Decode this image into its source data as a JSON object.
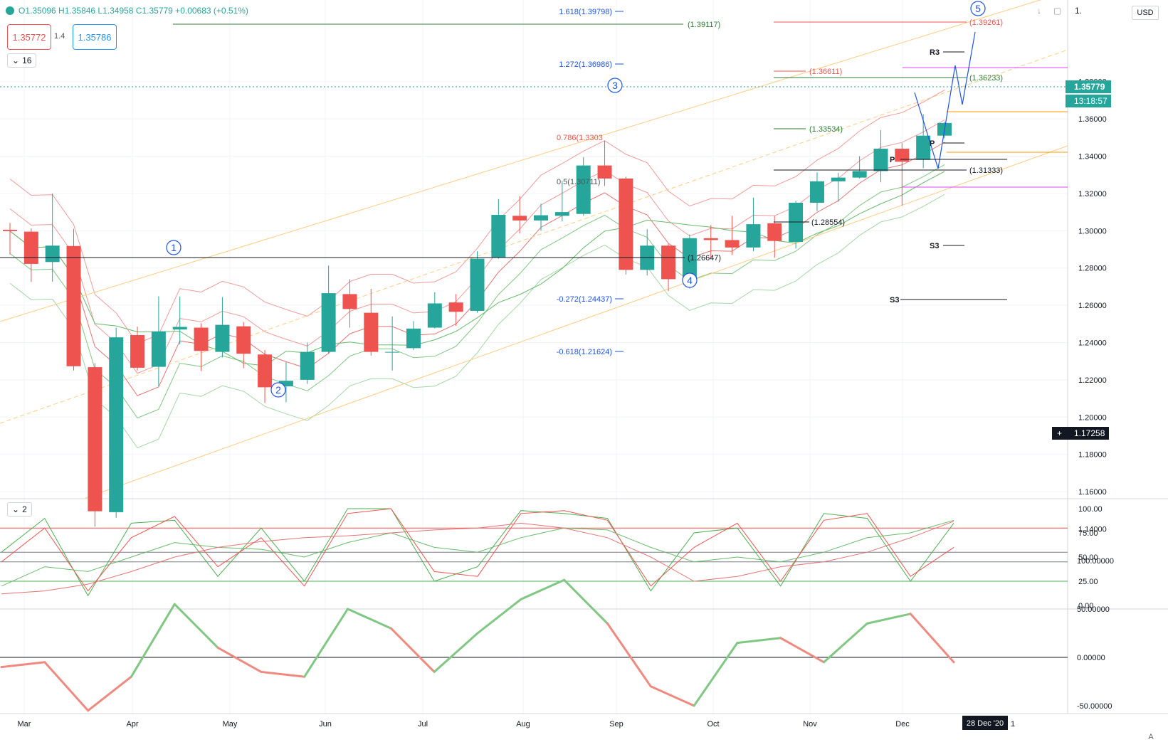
{
  "header": {
    "ohlc": "O1.35096 H1.35846 L1.34958 C1.35779 +0.00683 (+0.51%)",
    "sell_price": "1.35772",
    "spread": "1.4",
    "buy_price": "1.35786",
    "indicator_count": "16",
    "stoch_count": "2",
    "currency": "USD",
    "top_price_cut": "1.",
    "auto_label": "A"
  },
  "colors": {
    "up": "#26a69a",
    "down": "#ef5350",
    "last_price_bg": "#26a69a",
    "crosshair_bg": "#131722"
  },
  "price_axis": {
    "ticks": [
      "1.14000",
      "1.16000",
      "1.18000",
      "1.20000",
      "1.22000",
      "1.24000",
      "1.26000",
      "1.28000",
      "1.30000",
      "1.32000",
      "1.34000",
      "1.36000",
      "1.38000"
    ],
    "last_price": "1.35779",
    "countdown": "13:18:57",
    "crosshair_price": "1.17258"
  },
  "time_axis": {
    "ticks": [
      "Mar",
      "Apr",
      "May",
      "Jun",
      "Jul",
      "Aug",
      "Sep",
      "Oct",
      "Nov",
      "Dec"
    ],
    "crosshair_date": "28 Dec '20",
    "edge_tick": "1"
  },
  "annotations": {
    "fib_ext": [
      {
        "label": "1.618(1.39798)"
      },
      {
        "label": "1.272(1.36986)"
      },
      {
        "label": "-0.272(1.24437)"
      },
      {
        "label": "-0.618(1.21624)"
      }
    ],
    "fib_retr": [
      {
        "label": "0.786(1.3303"
      },
      {
        "label": "0.5(1.30711)"
      }
    ],
    "levels": [
      {
        "label": "(1.39117)"
      },
      {
        "label": "(1.39261)"
      },
      {
        "label": "(1.36611)"
      },
      {
        "label": "(1.36233)"
      },
      {
        "label": "(1.33534)"
      },
      {
        "label": "(1.31333)"
      },
      {
        "label": "(1.28554)"
      },
      {
        "label": "(1.26647)"
      }
    ],
    "waves": [
      "1",
      "2",
      "3",
      "4",
      "5"
    ],
    "pivots": [
      "R3",
      "P",
      "S3",
      "S3",
      "P"
    ]
  },
  "chart_data": [
    {
      "type": "candlestick",
      "title": "",
      "x_range": [
        "2020-02-17",
        "2021-01-01"
      ],
      "ylim": [
        1.14,
        1.405
      ],
      "points": [
        {
          "date": "2020-02-17",
          "o": 1.3005,
          "h": 1.3042,
          "l": 1.2873,
          "c": 1.2998
        },
        {
          "date": "2020-02-24",
          "o": 1.2995,
          "h": 1.3012,
          "l": 1.2725,
          "c": 1.2822
        },
        {
          "date": "2020-03-02",
          "o": 1.2832,
          "h": 1.32,
          "l": 1.2726,
          "c": 1.292
        },
        {
          "date": "2020-03-09",
          "o": 1.2918,
          "h": 1.301,
          "l": 1.225,
          "c": 1.2273
        },
        {
          "date": "2020-03-16",
          "o": 1.2268,
          "h": 1.229,
          "l": 1.1412,
          "c": 1.1495
        },
        {
          "date": "2020-03-23",
          "o": 1.149,
          "h": 1.248,
          "l": 1.146,
          "c": 1.2428
        },
        {
          "date": "2020-03-30",
          "o": 1.244,
          "h": 1.2485,
          "l": 1.225,
          "c": 1.2265
        },
        {
          "date": "2020-04-06",
          "o": 1.227,
          "h": 1.2648,
          "l": 1.2165,
          "c": 1.246
        },
        {
          "date": "2020-04-13",
          "o": 1.247,
          "h": 1.2647,
          "l": 1.239,
          "c": 1.2484
        },
        {
          "date": "2020-04-20",
          "o": 1.248,
          "h": 1.2503,
          "l": 1.2247,
          "c": 1.2355
        },
        {
          "date": "2020-04-27",
          "o": 1.235,
          "h": 1.2644,
          "l": 1.232,
          "c": 1.2495
        },
        {
          "date": "2020-05-04",
          "o": 1.2487,
          "h": 1.251,
          "l": 1.2262,
          "c": 1.234
        },
        {
          "date": "2020-05-11",
          "o": 1.2336,
          "h": 1.236,
          "l": 1.2076,
          "c": 1.216
        },
        {
          "date": "2020-05-18",
          "o": 1.2165,
          "h": 1.2295,
          "l": 1.208,
          "c": 1.2195
        },
        {
          "date": "2020-05-25",
          "o": 1.22,
          "h": 1.24,
          "l": 1.2178,
          "c": 1.235
        },
        {
          "date": "2020-06-01",
          "o": 1.235,
          "h": 1.2813,
          "l": 1.234,
          "c": 1.2665
        },
        {
          "date": "2020-06-08",
          "o": 1.266,
          "h": 1.274,
          "l": 1.248,
          "c": 1.258
        },
        {
          "date": "2020-06-15",
          "o": 1.256,
          "h": 1.2688,
          "l": 1.233,
          "c": 1.235
        },
        {
          "date": "2020-06-22",
          "o": 1.235,
          "h": 1.254,
          "l": 1.225,
          "c": 1.235
        },
        {
          "date": "2020-06-29",
          "o": 1.237,
          "h": 1.2515,
          "l": 1.236,
          "c": 1.2475
        },
        {
          "date": "2020-07-06",
          "o": 1.248,
          "h": 1.267,
          "l": 1.2475,
          "c": 1.261
        },
        {
          "date": "2020-07-13",
          "o": 1.2615,
          "h": 1.266,
          "l": 1.249,
          "c": 1.2565
        },
        {
          "date": "2020-07-20",
          "o": 1.257,
          "h": 1.289,
          "l": 1.256,
          "c": 1.285
        },
        {
          "date": "2020-07-27",
          "o": 1.2855,
          "h": 1.317,
          "l": 1.285,
          "c": 1.3085
        },
        {
          "date": "2020-08-03",
          "o": 1.308,
          "h": 1.3185,
          "l": 1.2985,
          "c": 1.3055
        },
        {
          "date": "2020-08-10",
          "o": 1.3055,
          "h": 1.3145,
          "l": 1.3,
          "c": 1.3083
        },
        {
          "date": "2020-08-17",
          "o": 1.308,
          "h": 1.3267,
          "l": 1.305,
          "c": 1.31
        },
        {
          "date": "2020-08-24",
          "o": 1.309,
          "h": 1.3395,
          "l": 1.308,
          "c": 1.335
        },
        {
          "date": "2020-08-31",
          "o": 1.335,
          "h": 1.3483,
          "l": 1.324,
          "c": 1.328
        },
        {
          "date": "2020-09-07",
          "o": 1.328,
          "h": 1.329,
          "l": 1.2765,
          "c": 1.279
        },
        {
          "date": "2020-09-14",
          "o": 1.279,
          "h": 1.3008,
          "l": 1.276,
          "c": 1.292
        },
        {
          "date": "2020-09-21",
          "o": 1.292,
          "h": 1.293,
          "l": 1.2676,
          "c": 1.274
        },
        {
          "date": "2020-09-28",
          "o": 1.2745,
          "h": 1.298,
          "l": 1.269,
          "c": 1.296
        },
        {
          "date": "2020-10-05",
          "o": 1.296,
          "h": 1.303,
          "l": 1.285,
          "c": 1.295
        },
        {
          "date": "2020-10-12",
          "o": 1.295,
          "h": 1.308,
          "l": 1.287,
          "c": 1.291
        },
        {
          "date": "2020-10-19",
          "o": 1.291,
          "h": 1.3177,
          "l": 1.289,
          "c": 1.3035
        },
        {
          "date": "2020-10-26",
          "o": 1.304,
          "h": 1.308,
          "l": 1.2855,
          "c": 1.2945
        },
        {
          "date": "2020-11-02",
          "o": 1.294,
          "h": 1.316,
          "l": 1.2905,
          "c": 1.315
        },
        {
          "date": "2020-11-09",
          "o": 1.315,
          "h": 1.3313,
          "l": 1.3105,
          "c": 1.3265
        },
        {
          "date": "2020-11-16",
          "o": 1.3265,
          "h": 1.331,
          "l": 1.3155,
          "c": 1.3285
        },
        {
          "date": "2020-11-23",
          "o": 1.3285,
          "h": 1.34,
          "l": 1.328,
          "c": 1.332
        },
        {
          "date": "2020-11-30",
          "o": 1.332,
          "h": 1.354,
          "l": 1.326,
          "c": 1.344
        },
        {
          "date": "2020-12-07",
          "o": 1.344,
          "h": 1.347,
          "l": 1.3135,
          "c": 1.337
        },
        {
          "date": "2020-12-14",
          "o": 1.338,
          "h": 1.3625,
          "l": 1.3335,
          "c": 1.351
        },
        {
          "date": "2020-12-21",
          "o": 1.351,
          "h": 1.3585,
          "l": 1.3496,
          "c": 1.3578
        }
      ]
    },
    {
      "type": "line",
      "title": "",
      "ylim": [
        0,
        100
      ],
      "y_ticks": [
        "0.00",
        "25.00",
        "50.00",
        "75.00",
        "100.00"
      ],
      "x": [
        "2020-02-17",
        "2020-03-02",
        "2020-03-16",
        "2020-03-30",
        "2020-04-13",
        "2020-04-27",
        "2020-05-11",
        "2020-05-25",
        "2020-06-08",
        "2020-06-22",
        "2020-07-06",
        "2020-07-20",
        "2020-08-03",
        "2020-08-17",
        "2020-08-31",
        "2020-09-14",
        "2020-09-28",
        "2020-10-12",
        "2020-10-26",
        "2020-11-09",
        "2020-11-23",
        "2020-12-07",
        "2020-12-21"
      ],
      "series": [
        {
          "values": [
            55,
            90,
            10,
            85,
            88,
            30,
            80,
            25,
            100,
            100,
            25,
            40,
            98,
            95,
            90,
            15,
            75,
            80,
            20,
            95,
            90,
            25,
            85
          ]
        },
        {
          "values": [
            45,
            80,
            15,
            70,
            92,
            40,
            70,
            20,
            95,
            100,
            35,
            30,
            95,
            98,
            88,
            20,
            60,
            85,
            25,
            88,
            95,
            30,
            60
          ]
        },
        {
          "values": [
            20,
            40,
            35,
            50,
            65,
            60,
            58,
            50,
            65,
            75,
            60,
            55,
            70,
            80,
            78,
            60,
            45,
            50,
            45,
            55,
            70,
            75,
            88
          ]
        },
        {
          "values": [
            12,
            15,
            22,
            35,
            50,
            60,
            66,
            70,
            72,
            75,
            78,
            80,
            85,
            80,
            70,
            50,
            25,
            30,
            40,
            45,
            55,
            70,
            87
          ]
        }
      ]
    },
    {
      "type": "line",
      "title": "",
      "ylim": [
        -60,
        100
      ],
      "y_ticks": [
        "-50.00000",
        "0.00000",
        "50.00000",
        "100.00000"
      ],
      "x": [
        "2020-02-17",
        "2020-03-02",
        "2020-03-16",
        "2020-03-30",
        "2020-04-13",
        "2020-04-27",
        "2020-05-11",
        "2020-05-25",
        "2020-06-08",
        "2020-06-22",
        "2020-07-06",
        "2020-07-20",
        "2020-08-03",
        "2020-08-17",
        "2020-08-31",
        "2020-09-14",
        "2020-09-28",
        "2020-10-12",
        "2020-10-26",
        "2020-11-09",
        "2020-11-23",
        "2020-12-07",
        "2020-12-21"
      ],
      "series": [
        {
          "values": [
            -10,
            -5,
            -55,
            -20,
            55,
            10,
            -15,
            -20,
            50,
            30,
            -15,
            25,
            60,
            80,
            35,
            -30,
            -50,
            15,
            20,
            -5,
            35,
            45,
            -5
          ]
        }
      ]
    }
  ]
}
